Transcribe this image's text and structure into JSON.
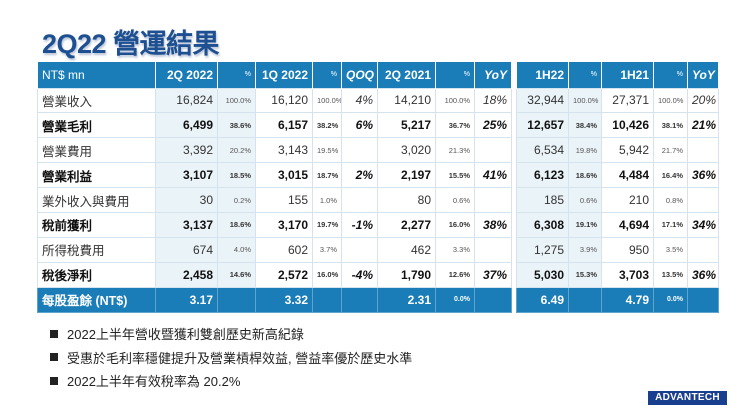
{
  "title": "2Q22 營運結果",
  "table1": {
    "headers": [
      "NT$ mn",
      "2Q 2022",
      "%",
      "1Q 2022",
      "%",
      "QOQ",
      "2Q 2021",
      "%",
      "YoY"
    ],
    "rows": [
      {
        "label": "營業收入",
        "bold": false,
        "cells": [
          "16,824",
          "100.0%",
          "16,120",
          "100.0%",
          "4%",
          "14,210",
          "100.0%",
          "18%"
        ]
      },
      {
        "label": "營業毛利",
        "bold": true,
        "cells": [
          "6,499",
          "38.6%",
          "6,157",
          "38.2%",
          "6%",
          "5,217",
          "36.7%",
          "25%"
        ]
      },
      {
        "label": "營業費用",
        "bold": false,
        "cells": [
          "3,392",
          "20.2%",
          "3,143",
          "19.5%",
          "",
          "3,020",
          "21.3%",
          ""
        ]
      },
      {
        "label": "營業利益",
        "bold": true,
        "cells": [
          "3,107",
          "18.5%",
          "3,015",
          "18.7%",
          "2%",
          "2,197",
          "15.5%",
          "41%"
        ]
      },
      {
        "label": "業外收入與費用",
        "bold": false,
        "cells": [
          "30",
          "0.2%",
          "155",
          "1.0%",
          "",
          "80",
          "0.6%",
          ""
        ]
      },
      {
        "label": "稅前獲利",
        "bold": true,
        "cells": [
          "3,137",
          "18.6%",
          "3,170",
          "19.7%",
          "-1%",
          "2,277",
          "16.0%",
          "38%"
        ]
      },
      {
        "label": "所得稅費用",
        "bold": false,
        "cells": [
          "674",
          "4.0%",
          "602",
          "3.7%",
          "",
          "462",
          "3.3%",
          ""
        ]
      },
      {
        "label": "稅後淨利",
        "bold": true,
        "cells": [
          "2,458",
          "14.6%",
          "2,572",
          "16.0%",
          "-4%",
          "1,790",
          "12.6%",
          "37%"
        ]
      }
    ],
    "eps": {
      "label": "每股盈餘 (NT$)",
      "cells": [
        "3.17",
        "",
        "3.32",
        "",
        "",
        "2.31",
        "0.0%",
        ""
      ]
    }
  },
  "table2": {
    "headers": [
      "1H22",
      "%",
      "1H21",
      "%",
      "YoY"
    ],
    "rows": [
      [
        "32,944",
        "100.0%",
        "27,371",
        "100.0%",
        "20%"
      ],
      [
        "12,657",
        "38.4%",
        "10,426",
        "38.1%",
        "21%"
      ],
      [
        "6,534",
        "19.8%",
        "5,942",
        "21.7%",
        ""
      ],
      [
        "6,123",
        "18.6%",
        "4,484",
        "16.4%",
        "36%"
      ],
      [
        "185",
        "0.6%",
        "210",
        "0.8%",
        ""
      ],
      [
        "6,308",
        "19.1%",
        "4,694",
        "17.1%",
        "34%"
      ],
      [
        "1,275",
        "3.9%",
        "950",
        "3.5%",
        ""
      ],
      [
        "5,030",
        "15.3%",
        "3,703",
        "13.5%",
        "36%"
      ]
    ],
    "eps": [
      "6.49",
      "",
      "4.79",
      "0.0%",
      ""
    ]
  },
  "bullets": [
    "2022上半年營收暨獲利雙創歷史新高紀錄",
    "受惠於毛利率穩健提升及營業槓桿效益, 營益率優於歷史水準",
    "2022上半年有效稅率為 20.2%"
  ],
  "logo": "ADVANTECH",
  "colors": {
    "header": "#1a7db8",
    "title": "#1d4f91",
    "logo": "#1b3f8f"
  }
}
